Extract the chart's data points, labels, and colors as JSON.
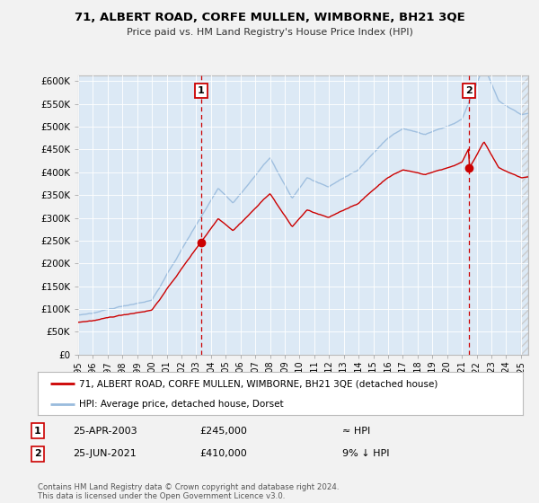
{
  "title": "71, ALBERT ROAD, CORFE MULLEN, WIMBORNE, BH21 3QE",
  "subtitle": "Price paid vs. HM Land Registry's House Price Index (HPI)",
  "background_color": "#f2f2f2",
  "plot_bg_color": "#dce9f5",
  "ylim": [
    0,
    612500
  ],
  "yticks": [
    0,
    50000,
    100000,
    150000,
    200000,
    250000,
    300000,
    350000,
    400000,
    450000,
    500000,
    550000,
    600000
  ],
  "ytick_labels": [
    "£0",
    "£50K",
    "£100K",
    "£150K",
    "£200K",
    "£250K",
    "£300K",
    "£350K",
    "£400K",
    "£450K",
    "£500K",
    "£550K",
    "£600K"
  ],
  "sale1_date": 2003.32,
  "sale1_price": 245000,
  "sale1_label": "1",
  "sale2_date": 2021.48,
  "sale2_price": 410000,
  "sale2_label": "2",
  "line_color_property": "#cc0000",
  "line_color_hpi": "#99bbdd",
  "legend_property": "71, ALBERT ROAD, CORFE MULLEN, WIMBORNE, BH21 3QE (detached house)",
  "legend_hpi": "HPI: Average price, detached house, Dorset",
  "table_rows": [
    {
      "num": "1",
      "date": "25-APR-2003",
      "price": "£245,000",
      "hpi": "≈ HPI"
    },
    {
      "num": "2",
      "date": "25-JUN-2021",
      "price": "£410,000",
      "hpi": "9% ↓ HPI"
    }
  ],
  "footnote": "Contains HM Land Registry data © Crown copyright and database right 2024.\nThis data is licensed under the Open Government Licence v3.0.",
  "xmin": 1995.0,
  "xmax": 2025.5
}
